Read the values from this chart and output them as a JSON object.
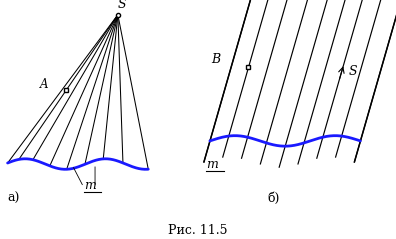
{
  "fig_width": 3.96,
  "fig_height": 2.39,
  "dpi": 100,
  "background": "#ffffff",
  "line_color": "#000000",
  "blue_color": "#1a1aff",
  "label_a": "a)",
  "label_b": "б)",
  "caption": "Рис. 11.5",
  "label_S_left": "S",
  "label_A": "A",
  "label_m_left": "m",
  "label_B": "B",
  "label_S_right": "S",
  "label_m_right": "m"
}
